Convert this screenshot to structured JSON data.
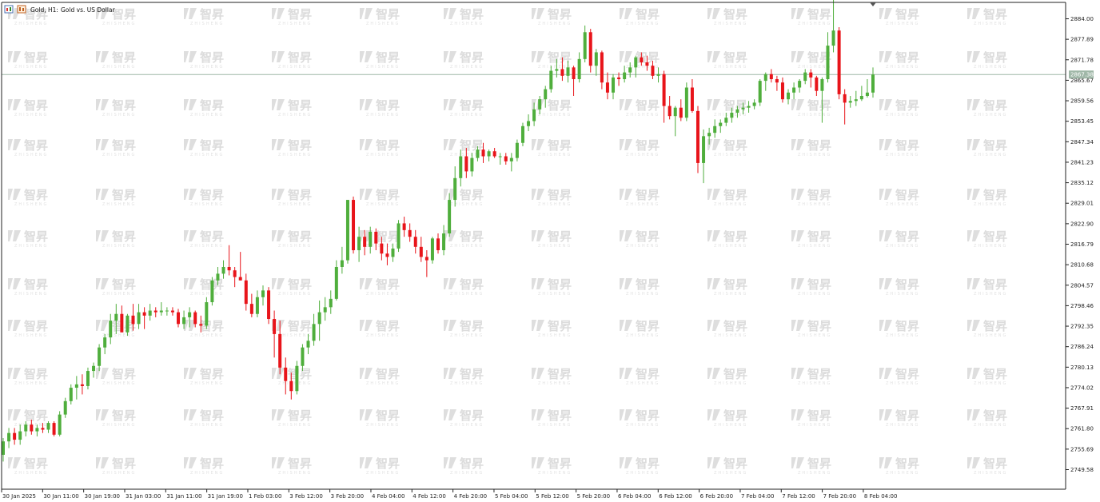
{
  "window": {
    "symbol_title": "Gold, H1:",
    "symbol_desc": "Gold vs. US Dollar",
    "icon": "chart-window-icon"
  },
  "watermark": {
    "brand": "智昇",
    "sub": "ZHISHENG"
  },
  "colors": {
    "bull": "#4fae3c",
    "bear": "#e8141a",
    "price_line": "#9fb7a7",
    "price_label_bg": "#9fb7a7",
    "axis": "#000000"
  },
  "current_price_label": "2867.38",
  "chart_data": {
    "type": "candlestick",
    "title": "Gold, H1: Gold vs. US Dollar",
    "ylim": [
      2744,
      2891
    ],
    "y_ticks": [
      "2884.00",
      "2877.89",
      "2871.78",
      "2865.67",
      "2859.56",
      "2853.45",
      "2847.34",
      "2841.23",
      "2835.12",
      "2829.01",
      "2822.90",
      "2816.79",
      "2810.68",
      "2804.57",
      "2798.46",
      "2792.35",
      "2786.24",
      "2780.13",
      "2774.02",
      "2767.91",
      "2761.80",
      "2755.69",
      "2749.58"
    ],
    "x_ticks": [
      "30 Jan 2025",
      "30 Jan 11:00",
      "30 Jan 19:00",
      "31 Jan 03:00",
      "31 Jan 11:00",
      "31 Jan 19:00",
      "1 Feb 03:00",
      "3 Feb 12:00",
      "3 Feb 20:00",
      "4 Feb 04:00",
      "4 Feb 12:00",
      "4 Feb 20:00",
      "5 Feb 04:00",
      "5 Feb 12:00",
      "5 Feb 20:00",
      "6 Feb 04:00",
      "6 Feb 12:00",
      "6 Feb 20:00",
      "7 Feb 04:00",
      "7 Feb 12:00",
      "7 Feb 20:00",
      "8 Feb 04:00"
    ],
    "current_price": 2867.38,
    "bar_interval": "H1",
    "candles": [
      [
        2754.0,
        2759.0,
        2752.0,
        2758.0
      ],
      [
        2758.0,
        2762.0,
        2756.0,
        2760.5
      ],
      [
        2760.5,
        2762.0,
        2757.0,
        2758.5
      ],
      [
        2758.5,
        2763.0,
        2757.0,
        2761.0
      ],
      [
        2761.0,
        2764.0,
        2759.5,
        2763.0
      ],
      [
        2763.0,
        2764.5,
        2760.0,
        2761.0
      ],
      [
        2761.0,
        2763.0,
        2759.5,
        2762.0
      ],
      [
        2762.0,
        2763.5,
        2760.5,
        2761.5
      ],
      [
        2761.5,
        2764.0,
        2760.5,
        2763.5
      ],
      [
        2763.5,
        2764.0,
        2759.5,
        2760.0
      ],
      [
        2760.0,
        2767.0,
        2759.5,
        2766.0
      ],
      [
        2766.0,
        2771.0,
        2765.0,
        2770.0
      ],
      [
        2770.0,
        2775.0,
        2769.0,
        2774.0
      ],
      [
        2774.0,
        2777.5,
        2770.5,
        2775.0
      ],
      [
        2775.0,
        2778.0,
        2772.0,
        2774.5
      ],
      [
        2774.5,
        2780.0,
        2773.5,
        2779.0
      ],
      [
        2779.0,
        2781.5,
        2777.0,
        2780.5
      ],
      [
        2780.5,
        2787.0,
        2779.0,
        2786.0
      ],
      [
        2786.0,
        2790.0,
        2784.0,
        2789.0
      ],
      [
        2789.0,
        2796.0,
        2787.0,
        2794.0
      ],
      [
        2794.0,
        2799.0,
        2790.0,
        2796.0
      ],
      [
        2796.0,
        2798.5,
        2791.0,
        2790.5
      ],
      [
        2790.5,
        2796.0,
        2789.5,
        2795.5
      ],
      [
        2795.5,
        2799.0,
        2791.0,
        2793.0
      ],
      [
        2793.0,
        2799.0,
        2791.5,
        2796.5
      ],
      [
        2796.5,
        2798.0,
        2791.5,
        2795.5
      ],
      [
        2795.5,
        2799.0,
        2794.0,
        2797.0
      ],
      [
        2797.0,
        2798.0,
        2795.0,
        2796.5
      ],
      [
        2796.5,
        2799.5,
        2795.5,
        2797.0
      ],
      [
        2797.0,
        2798.0,
        2795.5,
        2797.0
      ],
      [
        2797.0,
        2798.0,
        2795.5,
        2796.5
      ],
      [
        2796.5,
        2797.5,
        2792.0,
        2793.0
      ],
      [
        2793.0,
        2797.0,
        2791.5,
        2795.0
      ],
      [
        2795.0,
        2798.0,
        2792.0,
        2796.5
      ],
      [
        2796.5,
        2797.0,
        2792.0,
        2793.0
      ],
      [
        2793.0,
        2795.5,
        2790.5,
        2792.5
      ],
      [
        2792.5,
        2801.0,
        2791.5,
        2799.5
      ],
      [
        2799.5,
        2807.0,
        2798.5,
        2806.0
      ],
      [
        2806.0,
        2810.0,
        2804.5,
        2808.0
      ],
      [
        2808.0,
        2812.0,
        2806.5,
        2810.0
      ],
      [
        2810.0,
        2816.5,
        2807.5,
        2809.0
      ],
      [
        2809.0,
        2810.0,
        2804.0,
        2807.0
      ],
      [
        2807.0,
        2814.5,
        2806.0,
        2806.0
      ],
      [
        2806.0,
        2808.0,
        2797.0,
        2799.0
      ],
      [
        2799.0,
        2802.0,
        2795.0,
        2796.0
      ],
      [
        2796.0,
        2803.0,
        2795.0,
        2801.0
      ],
      [
        2801.0,
        2804.5,
        2798.5,
        2803.0
      ],
      [
        2803.0,
        2804.0,
        2793.0,
        2794.5
      ],
      [
        2794.5,
        2797.0,
        2783.0,
        2790.0
      ],
      [
        2790.0,
        2794.0,
        2778.0,
        2780.0
      ],
      [
        2780.0,
        2783.0,
        2772.0,
        2776.0
      ],
      [
        2776.0,
        2778.5,
        2770.5,
        2773.0
      ],
      [
        2773.0,
        2782.0,
        2772.0,
        2780.5
      ],
      [
        2780.5,
        2787.0,
        2779.0,
        2786.0
      ],
      [
        2786.0,
        2790.0,
        2784.0,
        2788.0
      ],
      [
        2788.0,
        2796.0,
        2786.5,
        2793.0
      ],
      [
        2793.0,
        2800.0,
        2788.0,
        2796.5
      ],
      [
        2796.5,
        2801.0,
        2794.0,
        2798.0
      ],
      [
        2798.0,
        2803.0,
        2796.0,
        2800.5
      ],
      [
        2800.5,
        2812.0,
        2800.0,
        2810.0
      ],
      [
        2810.0,
        2816.0,
        2808.0,
        2812.0
      ],
      [
        2812.0,
        2830.0,
        2811.0,
        2830.0
      ],
      [
        2830.0,
        2831.0,
        2814.0,
        2815.0
      ],
      [
        2815.0,
        2822.0,
        2811.5,
        2819.0
      ],
      [
        2819.0,
        2821.0,
        2813.5,
        2816.0
      ],
      [
        2816.0,
        2822.0,
        2814.0,
        2820.5
      ],
      [
        2820.5,
        2821.5,
        2815.0,
        2817.0
      ],
      [
        2817.0,
        2819.0,
        2812.0,
        2814.0
      ],
      [
        2814.0,
        2817.0,
        2810.5,
        2813.0
      ],
      [
        2813.0,
        2817.0,
        2811.5,
        2815.5
      ],
      [
        2815.5,
        2824.0,
        2814.5,
        2823.0
      ],
      [
        2823.0,
        2825.0,
        2819.0,
        2821.0
      ],
      [
        2821.0,
        2823.0,
        2817.5,
        2819.0
      ],
      [
        2819.0,
        2821.0,
        2814.0,
        2816.0
      ],
      [
        2816.0,
        2819.0,
        2811.5,
        2813.0
      ],
      [
        2813.0,
        2815.0,
        2807.0,
        2812.0
      ],
      [
        2812.0,
        2819.0,
        2811.0,
        2818.5
      ],
      [
        2818.5,
        2820.0,
        2814.0,
        2815.0
      ],
      [
        2815.0,
        2822.5,
        2813.5,
        2820.0
      ],
      [
        2820.0,
        2832.0,
        2819.0,
        2830.0
      ],
      [
        2830.0,
        2840.0,
        2828.0,
        2836.5
      ],
      [
        2836.5,
        2845.0,
        2834.0,
        2843.0
      ],
      [
        2843.0,
        2845.5,
        2836.5,
        2838.5
      ],
      [
        2838.5,
        2844.0,
        2837.0,
        2842.5
      ],
      [
        2842.5,
        2846.0,
        2841.5,
        2845.0
      ],
      [
        2845.0,
        2847.0,
        2841.0,
        2843.0
      ],
      [
        2843.0,
        2845.0,
        2841.5,
        2844.5
      ],
      [
        2844.5,
        2845.5,
        2842.5,
        2843.0
      ],
      [
        2843.0,
        2844.0,
        2840.5,
        2843.0
      ],
      [
        2843.0,
        2844.0,
        2840.5,
        2841.5
      ],
      [
        2841.5,
        2844.0,
        2838.5,
        2842.5
      ],
      [
        2842.5,
        2848.0,
        2841.5,
        2847.0
      ],
      [
        2847.0,
        2853.0,
        2846.0,
        2852.0
      ],
      [
        2852.0,
        2855.5,
        2850.5,
        2853.5
      ],
      [
        2853.5,
        2859.0,
        2852.0,
        2857.0
      ],
      [
        2857.0,
        2861.0,
        2855.5,
        2860.0
      ],
      [
        2860.0,
        2864.0,
        2857.5,
        2863.0
      ],
      [
        2863.0,
        2870.0,
        2862.0,
        2868.5
      ],
      [
        2868.5,
        2872.0,
        2866.5,
        2869.0
      ],
      [
        2869.0,
        2872.5,
        2865.5,
        2867.0
      ],
      [
        2867.0,
        2871.5,
        2865.0,
        2869.5
      ],
      [
        2869.5,
        2870.0,
        2861.0,
        2866.0
      ],
      [
        2866.0,
        2874.0,
        2865.0,
        2872.0
      ],
      [
        2872.0,
        2882.0,
        2871.0,
        2880.0
      ],
      [
        2880.0,
        2881.0,
        2868.0,
        2870.0
      ],
      [
        2870.0,
        2875.0,
        2867.0,
        2874.0
      ],
      [
        2874.0,
        2874.5,
        2863.0,
        2865.0
      ],
      [
        2865.0,
        2868.0,
        2860.0,
        2862.0
      ],
      [
        2862.0,
        2867.5,
        2860.0,
        2866.5
      ],
      [
        2866.5,
        2868.0,
        2864.0,
        2866.0
      ],
      [
        2866.0,
        2870.0,
        2865.0,
        2868.0
      ],
      [
        2868.0,
        2871.0,
        2866.5,
        2869.5
      ],
      [
        2869.5,
        2873.0,
        2866.5,
        2872.5
      ],
      [
        2872.5,
        2874.0,
        2870.0,
        2871.0
      ],
      [
        2871.0,
        2873.0,
        2868.5,
        2870.0
      ],
      [
        2870.0,
        2871.5,
        2866.0,
        2867.0
      ],
      [
        2867.0,
        2869.5,
        2865.0,
        2867.5
      ],
      [
        2867.5,
        2868.5,
        2853.0,
        2858.0
      ],
      [
        2858.0,
        2861.0,
        2854.0,
        2855.0
      ],
      [
        2855.0,
        2858.0,
        2849.0,
        2857.5
      ],
      [
        2857.5,
        2860.0,
        2853.5,
        2854.5
      ],
      [
        2854.5,
        2865.0,
        2853.5,
        2863.5
      ],
      [
        2863.5,
        2866.0,
        2856.0,
        2856.5
      ],
      [
        2856.5,
        2858.0,
        2838.0,
        2841.0
      ],
      [
        2841.0,
        2851.0,
        2835.0,
        2849.0
      ],
      [
        2849.0,
        2851.5,
        2846.5,
        2850.0
      ],
      [
        2850.0,
        2854.0,
        2848.5,
        2852.0
      ],
      [
        2852.0,
        2854.0,
        2850.0,
        2853.0
      ],
      [
        2853.0,
        2856.0,
        2852.0,
        2854.5
      ],
      [
        2854.5,
        2857.5,
        2853.0,
        2856.0
      ],
      [
        2856.0,
        2858.0,
        2854.5,
        2857.0
      ],
      [
        2857.0,
        2859.0,
        2855.5,
        2857.5
      ],
      [
        2857.5,
        2859.5,
        2856.0,
        2858.0
      ],
      [
        2858.0,
        2860.0,
        2857.0,
        2859.0
      ],
      [
        2859.0,
        2866.0,
        2858.0,
        2865.5
      ],
      [
        2865.5,
        2868.0,
        2862.5,
        2867.5
      ],
      [
        2867.5,
        2869.0,
        2865.0,
        2866.0
      ],
      [
        2866.0,
        2867.0,
        2862.5,
        2865.0
      ],
      [
        2865.0,
        2866.5,
        2859.0,
        2860.0
      ],
      [
        2860.0,
        2863.0,
        2858.5,
        2862.0
      ],
      [
        2862.0,
        2865.0,
        2860.0,
        2863.5
      ],
      [
        2863.5,
        2866.0,
        2862.0,
        2865.5
      ],
      [
        2865.5,
        2869.0,
        2864.5,
        2868.0
      ],
      [
        2868.0,
        2869.0,
        2863.5,
        2866.5
      ],
      [
        2866.5,
        2867.0,
        2861.0,
        2862.5
      ],
      [
        2862.5,
        2866.5,
        2853.0,
        2866.0
      ],
      [
        2866.0,
        2880.0,
        2865.0,
        2876.0
      ],
      [
        2876.0,
        2890.0,
        2874.0,
        2880.5
      ],
      [
        2880.5,
        2881.5,
        2860.0,
        2861.5
      ],
      [
        2861.5,
        2863.0,
        2852.5,
        2859.0
      ],
      [
        2859.0,
        2861.0,
        2857.5,
        2859.5
      ],
      [
        2859.5,
        2862.5,
        2858.0,
        2860.0
      ],
      [
        2860.0,
        2864.0,
        2859.5,
        2861.0
      ],
      [
        2861.0,
        2866.0,
        2860.5,
        2862.0
      ],
      [
        2862.0,
        2869.5,
        2860.5,
        2867.38
      ]
    ]
  }
}
